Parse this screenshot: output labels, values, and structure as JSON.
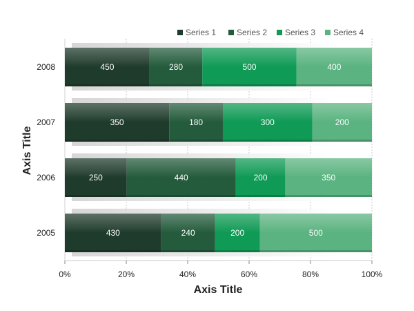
{
  "chart_data": {
    "type": "bar",
    "orientation": "horizontal",
    "stacked": "percent",
    "categories": [
      "2008",
      "2007",
      "2006",
      "2005"
    ],
    "series": [
      {
        "name": "Series 1",
        "values": [
          450,
          350,
          250,
          430
        ],
        "color": "#1f3b2c"
      },
      {
        "name": "Series 2",
        "values": [
          280,
          180,
          440,
          240
        ],
        "color": "#245b3c"
      },
      {
        "name": "Series 3",
        "values": [
          500,
          300,
          200,
          200
        ],
        "color": "#0f9a55"
      },
      {
        "name": "Series 4",
        "values": [
          400,
          200,
          350,
          500
        ],
        "color": "#5ab380"
      }
    ],
    "xlabel": "Axis Title",
    "ylabel": "Axis Title",
    "xlim": [
      0,
      100
    ],
    "x_ticks": [
      "0%",
      "20%",
      "40%",
      "60%",
      "80%",
      "100%"
    ],
    "grid": true,
    "legend_position": "top"
  }
}
